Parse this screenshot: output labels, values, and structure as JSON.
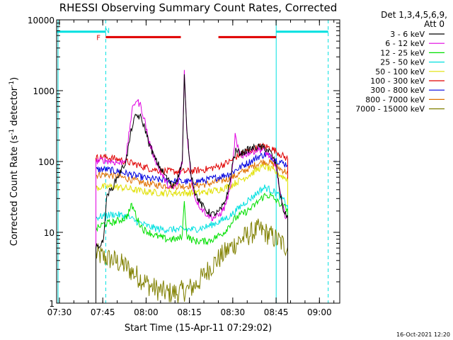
{
  "chart_data": {
    "type": "line",
    "title": "RHESSI Observing Summary Count Rates, Corrected",
    "xlabel": "Start Time (15-Apr-11 07:29:02)",
    "ylabel": "Corrected Count Rate (s⁻¹ detector⁻¹)",
    "ylabel_parts": [
      "Corrected Count Rate (s",
      "-1",
      " detector",
      "-1",
      ")"
    ],
    "y_scale": "log",
    "ylim": [
      1,
      10000
    ],
    "xlim_minutes": [
      0,
      98
    ],
    "x_ticks": [
      {
        "minute": 0.97,
        "label": "07:30"
      },
      {
        "minute": 15.97,
        "label": "07:45"
      },
      {
        "minute": 30.97,
        "label": "08:00"
      },
      {
        "minute": 45.97,
        "label": "08:15"
      },
      {
        "minute": 60.97,
        "label": "08:30"
      },
      {
        "minute": 75.97,
        "label": "08:45"
      },
      {
        "minute": 90.97,
        "label": "09:00"
      }
    ],
    "y_ticks": [
      {
        "value": 1,
        "label": "1"
      },
      {
        "value": 10,
        "label": "10"
      },
      {
        "value": 100,
        "label": "100"
      },
      {
        "value": 1000,
        "label": "1000"
      },
      {
        "value": 10000,
        "label": "10000"
      }
    ],
    "legend_header": [
      "Det 1,3,4,5,6,9,",
      "Att 0"
    ],
    "legend_position": "right",
    "series": [
      {
        "name": "3 - 6 keV",
        "color": "#000000",
        "points": [
          [
            13.6,
            6
          ],
          [
            15.6,
            7
          ],
          [
            16,
            7
          ],
          [
            17.5,
            35
          ],
          [
            19,
            40
          ],
          [
            21,
            60
          ],
          [
            24,
            100
          ],
          [
            26,
            300
          ],
          [
            27.5,
            450
          ],
          [
            29,
            420
          ],
          [
            30.5,
            300
          ],
          [
            32,
            180
          ],
          [
            34,
            110
          ],
          [
            36,
            80
          ],
          [
            38,
            60
          ],
          [
            40,
            45
          ],
          [
            42,
            60
          ],
          [
            43.5,
            100
          ],
          [
            44.2,
            1600
          ],
          [
            45,
            300
          ],
          [
            46.5,
            70
          ],
          [
            48,
            35
          ],
          [
            50,
            25
          ],
          [
            52,
            20
          ],
          [
            54,
            18
          ],
          [
            56,
            19
          ],
          [
            58,
            25
          ],
          [
            60,
            50
          ],
          [
            61,
            100
          ],
          [
            62,
            140
          ],
          [
            64,
            130
          ],
          [
            66,
            145
          ],
          [
            68,
            155
          ],
          [
            70,
            160
          ],
          [
            72,
            155
          ],
          [
            74,
            135
          ],
          [
            76,
            90
          ],
          [
            77,
            45
          ],
          [
            78,
            25
          ],
          [
            79,
            18
          ],
          [
            80,
            17
          ]
        ]
      },
      {
        "name": "6 - 12 keV",
        "color": "#e000e0",
        "points": [
          [
            13.6,
            100
          ],
          [
            16,
            105
          ],
          [
            19,
            100
          ],
          [
            22,
            95
          ],
          [
            24,
            110
          ],
          [
            26,
            500
          ],
          [
            27.5,
            750
          ],
          [
            29,
            620
          ],
          [
            30.5,
            380
          ],
          [
            32,
            190
          ],
          [
            34,
            110
          ],
          [
            36,
            70
          ],
          [
            38,
            50
          ],
          [
            40,
            40
          ],
          [
            42,
            50
          ],
          [
            43.5,
            100
          ],
          [
            44.2,
            1900
          ],
          [
            45,
            300
          ],
          [
            46.5,
            60
          ],
          [
            48,
            30
          ],
          [
            50,
            22
          ],
          [
            52,
            18
          ],
          [
            54,
            16
          ],
          [
            56,
            17
          ],
          [
            58,
            22
          ],
          [
            60,
            40
          ],
          [
            61,
            90
          ],
          [
            61.8,
            240
          ],
          [
            62.5,
            160
          ],
          [
            64,
            120
          ],
          [
            66,
            130
          ],
          [
            68,
            140
          ],
          [
            70,
            150
          ],
          [
            72,
            140
          ],
          [
            74,
            115
          ],
          [
            76,
            85
          ],
          [
            77,
            45
          ],
          [
            78,
            25
          ],
          [
            79,
            18
          ],
          [
            80,
            16
          ]
        ]
      },
      {
        "name": "12 - 25 keV",
        "color": "#00e000",
        "points": [
          [
            13.6,
            11
          ],
          [
            16,
            13
          ],
          [
            20,
            14
          ],
          [
            24,
            16
          ],
          [
            26,
            24
          ],
          [
            27,
            20
          ],
          [
            28,
            15
          ],
          [
            30,
            11
          ],
          [
            32,
            10
          ],
          [
            34,
            9
          ],
          [
            36,
            8.5
          ],
          [
            38,
            8
          ],
          [
            40,
            8
          ],
          [
            42,
            8
          ],
          [
            43.5,
            9
          ],
          [
            44.2,
            30
          ],
          [
            45,
            9
          ],
          [
            46.5,
            8
          ],
          [
            48,
            7.5
          ],
          [
            50,
            7.5
          ],
          [
            52,
            7.5
          ],
          [
            54,
            8
          ],
          [
            56,
            9
          ],
          [
            58,
            10
          ],
          [
            60,
            13
          ],
          [
            62,
            16
          ],
          [
            64,
            18
          ],
          [
            66,
            20
          ],
          [
            68,
            23
          ],
          [
            70,
            28
          ],
          [
            72,
            33
          ],
          [
            74,
            33
          ],
          [
            76,
            28
          ],
          [
            78,
            24
          ],
          [
            80,
            21
          ]
        ]
      },
      {
        "name": "25 - 50 keV",
        "color": "#00e0e0",
        "points": [
          [
            13.6,
            16
          ],
          [
            16,
            17
          ],
          [
            20,
            18
          ],
          [
            24,
            17
          ],
          [
            28,
            14
          ],
          [
            32,
            12
          ],
          [
            36,
            11
          ],
          [
            40,
            11
          ],
          [
            44,
            11
          ],
          [
            48,
            11
          ],
          [
            52,
            12
          ],
          [
            56,
            14
          ],
          [
            60,
            17
          ],
          [
            62,
            20
          ],
          [
            64,
            24
          ],
          [
            66,
            28
          ],
          [
            68,
            32
          ],
          [
            70,
            38
          ],
          [
            72,
            43
          ],
          [
            74,
            40
          ],
          [
            76,
            36
          ],
          [
            78,
            30
          ],
          [
            80,
            24
          ]
        ]
      },
      {
        "name": "50 - 100 keV",
        "color": "#e0e000",
        "points": [
          [
            13.6,
            42
          ],
          [
            16,
            44
          ],
          [
            20,
            44
          ],
          [
            24,
            42
          ],
          [
            28,
            39
          ],
          [
            32,
            37
          ],
          [
            36,
            36
          ],
          [
            40,
            36
          ],
          [
            44,
            36
          ],
          [
            48,
            36
          ],
          [
            52,
            37
          ],
          [
            56,
            40
          ],
          [
            60,
            45
          ],
          [
            62,
            50
          ],
          [
            64,
            56
          ],
          [
            66,
            62
          ],
          [
            68,
            70
          ],
          [
            70,
            80
          ],
          [
            72,
            85
          ],
          [
            74,
            78
          ],
          [
            76,
            70
          ],
          [
            78,
            62
          ],
          [
            80,
            56
          ]
        ]
      },
      {
        "name": "100 - 300 keV",
        "color": "#e00000",
        "points": [
          [
            13.6,
            112
          ],
          [
            16,
            116
          ],
          [
            20,
            110
          ],
          [
            24,
            100
          ],
          [
            28,
            90
          ],
          [
            32,
            80
          ],
          [
            36,
            74
          ],
          [
            40,
            72
          ],
          [
            44,
            72
          ],
          [
            48,
            74
          ],
          [
            52,
            78
          ],
          [
            56,
            85
          ],
          [
            60,
            100
          ],
          [
            62,
            115
          ],
          [
            64,
            130
          ],
          [
            66,
            140
          ],
          [
            68,
            148
          ],
          [
            70,
            160
          ],
          [
            72,
            165
          ],
          [
            74,
            155
          ],
          [
            76,
            140
          ],
          [
            78,
            122
          ],
          [
            80,
            108
          ]
        ]
      },
      {
        "name": "300 - 800 keV",
        "color": "#0000e0",
        "points": [
          [
            13.6,
            76
          ],
          [
            16,
            78
          ],
          [
            20,
            74
          ],
          [
            24,
            68
          ],
          [
            28,
            62
          ],
          [
            32,
            57
          ],
          [
            36,
            55
          ],
          [
            40,
            53
          ],
          [
            44,
            52
          ],
          [
            48,
            52
          ],
          [
            52,
            55
          ],
          [
            56,
            60
          ],
          [
            60,
            68
          ],
          [
            62,
            76
          ],
          [
            64,
            85
          ],
          [
            66,
            95
          ],
          [
            68,
            105
          ],
          [
            70,
            118
          ],
          [
            72,
            125
          ],
          [
            74,
            118
          ],
          [
            76,
            106
          ],
          [
            78,
            96
          ],
          [
            80,
            90
          ]
        ]
      },
      {
        "name": "800 - 7000 keV",
        "color": "#e07000",
        "points": [
          [
            13.6,
            64
          ],
          [
            16,
            66
          ],
          [
            20,
            63
          ],
          [
            24,
            58
          ],
          [
            28,
            52
          ],
          [
            32,
            48
          ],
          [
            36,
            46
          ],
          [
            40,
            45
          ],
          [
            44,
            45
          ],
          [
            48,
            46
          ],
          [
            52,
            48
          ],
          [
            56,
            52
          ],
          [
            60,
            58
          ],
          [
            62,
            63
          ],
          [
            64,
            70
          ],
          [
            66,
            78
          ],
          [
            68,
            86
          ],
          [
            70,
            95
          ],
          [
            72,
            100
          ],
          [
            74,
            96
          ],
          [
            76,
            86
          ],
          [
            78,
            76
          ],
          [
            80,
            70
          ]
        ]
      },
      {
        "name": "7000 - 15000 keV",
        "color": "#808000",
        "points": [
          [
            13.6,
            5
          ],
          [
            16,
            4.5
          ],
          [
            20,
            4
          ],
          [
            24,
            3.3
          ],
          [
            26,
            2.8
          ],
          [
            28,
            2.4
          ],
          [
            30,
            2.1
          ],
          [
            32,
            1.8
          ],
          [
            34,
            1.6
          ],
          [
            36,
            1.5
          ],
          [
            38,
            1.4
          ],
          [
            40,
            1.4
          ],
          [
            42,
            1.4
          ],
          [
            44,
            1.5
          ],
          [
            46,
            1.6
          ],
          [
            48,
            1.8
          ],
          [
            50,
            2.2
          ],
          [
            52,
            2.8
          ],
          [
            54,
            3.5
          ],
          [
            56,
            4.2
          ],
          [
            58,
            5
          ],
          [
            60,
            6
          ],
          [
            62,
            7
          ],
          [
            64,
            8
          ],
          [
            66,
            9
          ],
          [
            68,
            10
          ],
          [
            70,
            11
          ],
          [
            72,
            10
          ],
          [
            74,
            9
          ],
          [
            76,
            8
          ],
          [
            78,
            7
          ],
          [
            80,
            6.2
          ]
        ]
      }
    ],
    "annotations": [
      {
        "text": "F",
        "color": "#e00000",
        "minute": 14.5,
        "value": 5700
      },
      {
        "text": "N",
        "color": "#00e0e0",
        "minute": 17.5,
        "value": 7200
      }
    ],
    "status_bars": [
      {
        "color": "#00e0e0",
        "from_minute": 0,
        "to_minute": 17,
        "value": 6800
      },
      {
        "color": "#00e0e0",
        "from_minute": 76,
        "to_minute": 94,
        "value": 6800
      },
      {
        "color": "#e00000",
        "from_minute": 17,
        "to_minute": 43,
        "value": 5700
      },
      {
        "color": "#e00000",
        "from_minute": 56,
        "to_minute": 76,
        "value": 5700
      }
    ],
    "vertical_lines": [
      {
        "minute": 0.5,
        "color": "#00e0e0",
        "dashed": false
      },
      {
        "minute": 17,
        "color": "#00e0e0",
        "dashed": true
      },
      {
        "minute": 76,
        "color": "#00e0e0",
        "dashed": false
      },
      {
        "minute": 94,
        "color": "#00e0e0",
        "dashed": true
      }
    ],
    "grid": false
  },
  "footer_date": "16-Oct-2021 12:20"
}
